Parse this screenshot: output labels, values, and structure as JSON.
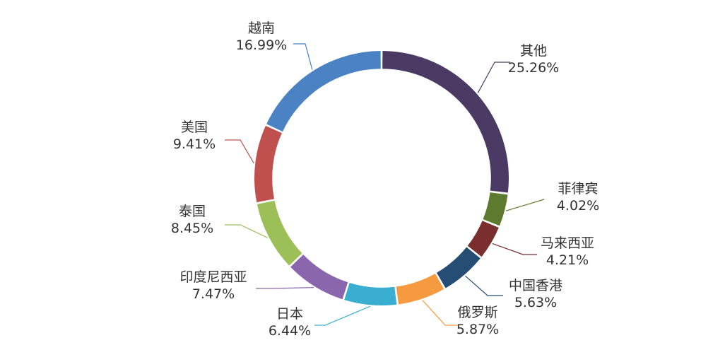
{
  "chart_data": {
    "type": "pie",
    "title": "",
    "legend": "none",
    "start_angle_deg": 0,
    "inner_radius_ratio": 0.86,
    "slices": [
      {
        "name": "其他",
        "value": 25.26,
        "label": "25.26%",
        "color": "#4b3a63"
      },
      {
        "name": "菲律宾",
        "value": 4.02,
        "label": "4.02%",
        "color": "#5e7a2e"
      },
      {
        "name": "马来西亚",
        "value": 4.21,
        "label": "4.21%",
        "color": "#7a2e2e"
      },
      {
        "name": "中国香港",
        "value": 5.63,
        "label": "5.63%",
        "color": "#264d73"
      },
      {
        "name": "俄罗斯",
        "value": 5.87,
        "label": "5.87%",
        "color": "#f59a3e"
      },
      {
        "name": "日本",
        "value": 6.44,
        "label": "6.44%",
        "color": "#3aaed1"
      },
      {
        "name": "印度尼西亚",
        "value": 7.47,
        "label": "7.47%",
        "color": "#8a66ad"
      },
      {
        "name": "泰国",
        "value": 8.45,
        "label": "8.45%",
        "color": "#9cbf57"
      },
      {
        "name": "美国",
        "value": 9.41,
        "label": "9.41%",
        "color": "#c0504d"
      },
      {
        "name": "越南",
        "value": 16.99,
        "label": "16.99%",
        "color": "#4a82c4"
      }
    ]
  }
}
